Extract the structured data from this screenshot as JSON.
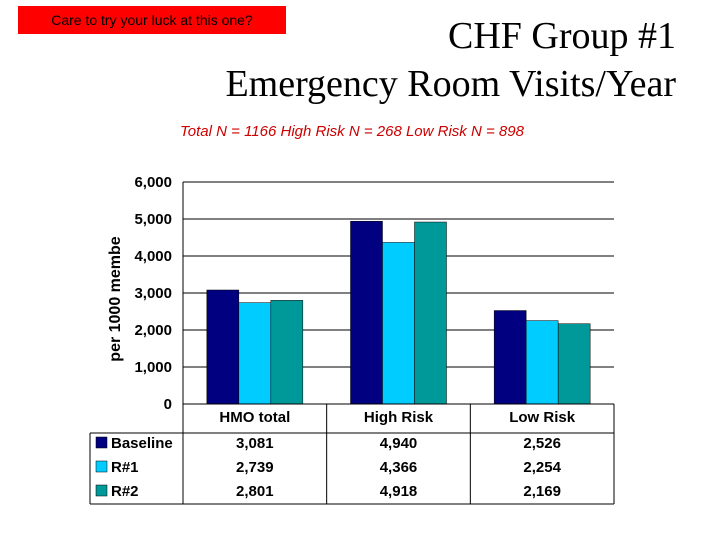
{
  "banner": "Care to try your luck at this one?",
  "title_line1": "CHF Group #1",
  "title_line2": "Emergency Room Visits/Year",
  "subtitle": "Total N = 1166   High Risk N = 268 Low Risk N = 898",
  "chart_data": {
    "type": "bar",
    "ylabel": "per 1000 membe",
    "ylim": [
      0,
      6000
    ],
    "yticks": [
      "0",
      "1,000",
      "2,000",
      "3,000",
      "4,000",
      "5,000",
      "6,000"
    ],
    "categories": [
      "HMO total",
      "High Risk",
      "Low Risk"
    ],
    "series": [
      {
        "name": "Baseline",
        "color": "#000080",
        "values": [
          3081,
          4940,
          2526
        ],
        "labels": [
          "3,081",
          "4,940",
          "2,526"
        ]
      },
      {
        "name": "R#1",
        "color": "#00ccff",
        "values": [
          2739,
          4366,
          2254
        ],
        "labels": [
          "2,739",
          "4,366",
          "2,254"
        ]
      },
      {
        "name": "R#2",
        "color": "#009999",
        "values": [
          2801,
          4918,
          2169
        ],
        "labels": [
          "2,801",
          "4,918",
          "2,169"
        ]
      }
    ]
  }
}
